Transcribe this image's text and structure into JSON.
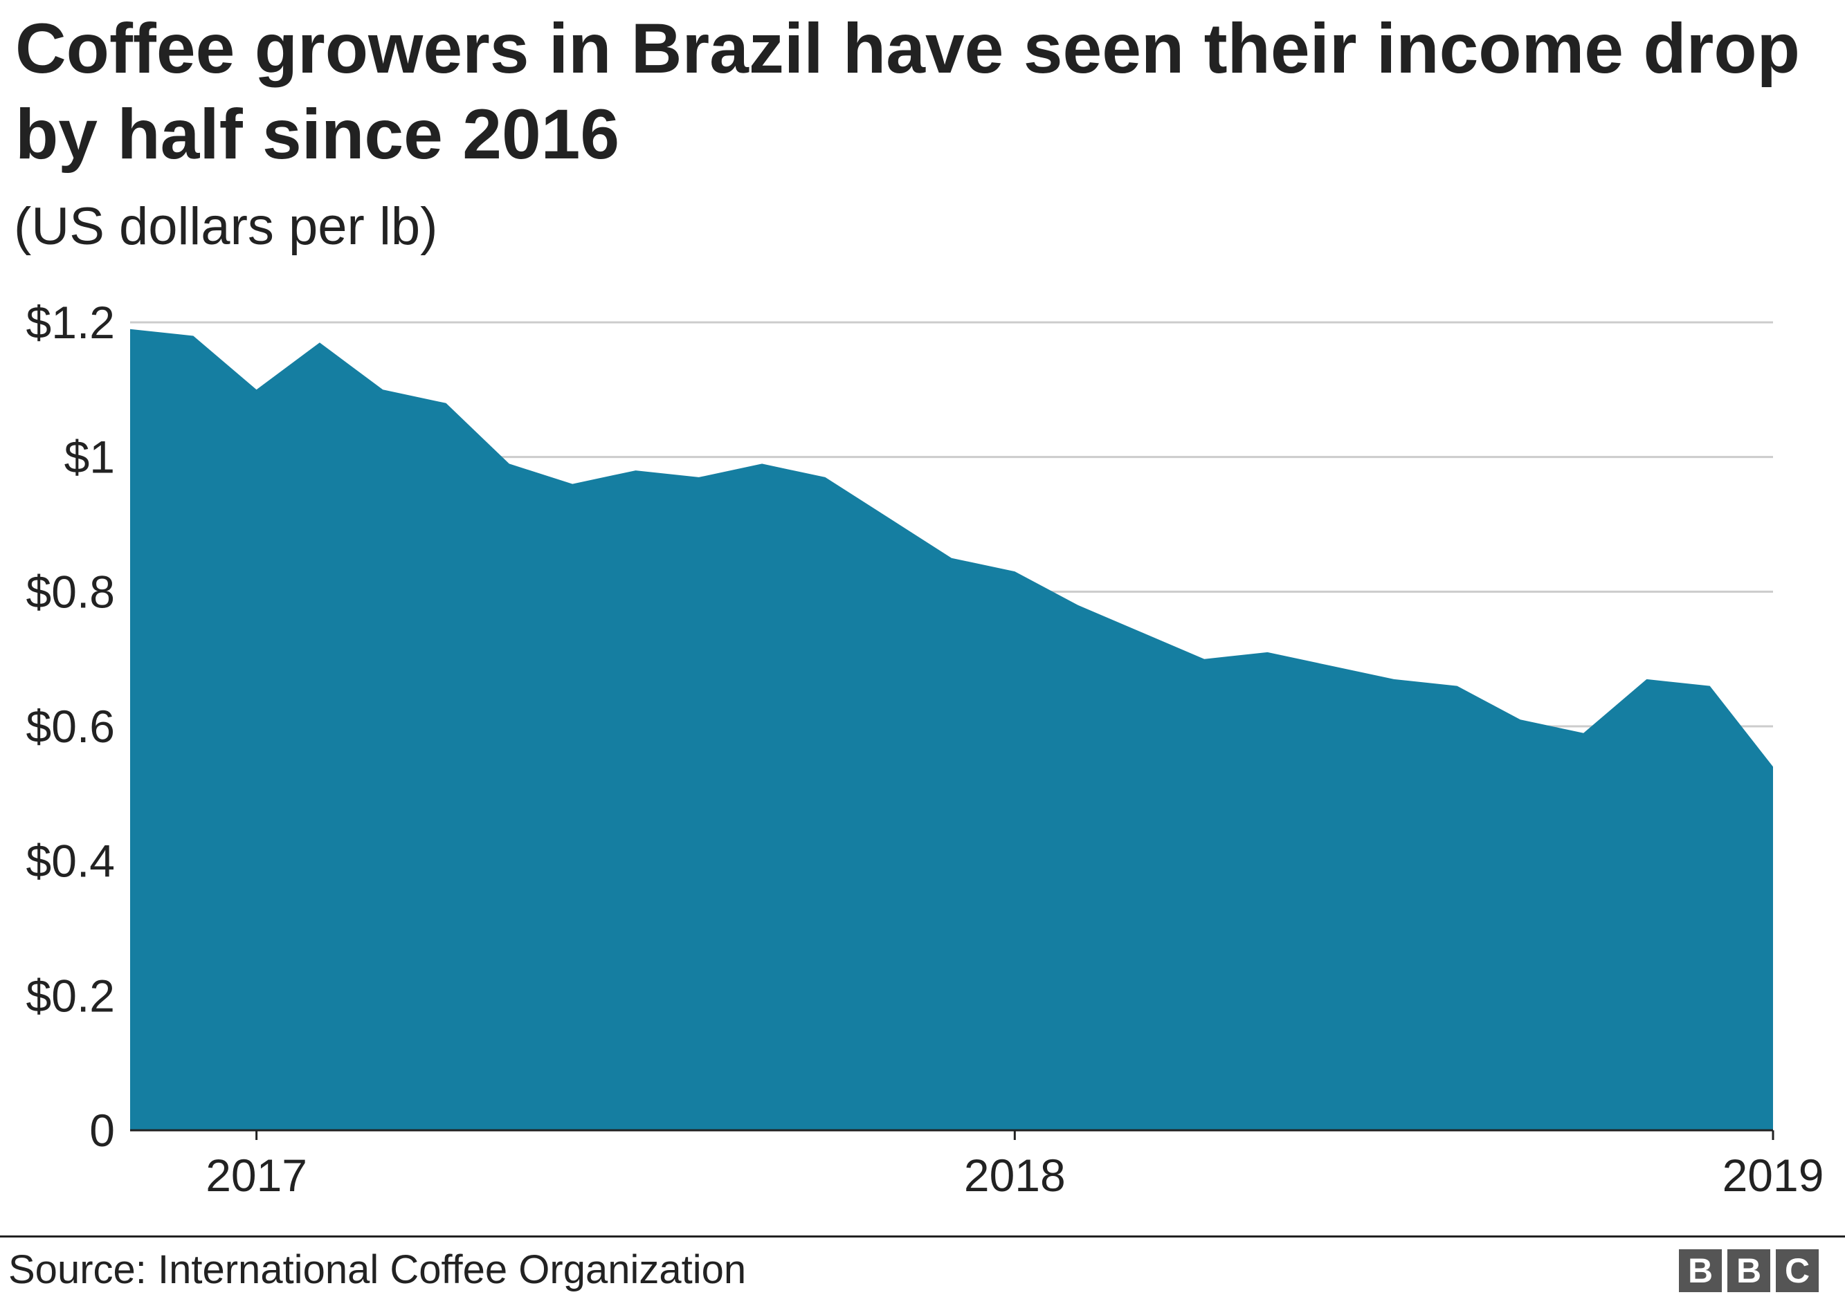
{
  "title": "Coffee growers in Brazil have seen their income drop by half since 2016",
  "subtitle": "(US dollars per lb)",
  "source": "Source: International Coffee Organization",
  "logo": {
    "letters": [
      "B",
      "B",
      "C"
    ],
    "color": "#555555"
  },
  "chart_data": {
    "type": "area",
    "x_start": "2016-11",
    "x_end": "2019-01",
    "x_ticks": [
      {
        "x": "2017-01",
        "label": "2017"
      },
      {
        "x": "2018-01",
        "label": "2018"
      },
      {
        "x": "2019-01",
        "label": "2019"
      }
    ],
    "y_ticks": [
      {
        "value": 0,
        "label": "0"
      },
      {
        "value": 0.2,
        "label": "$0.2"
      },
      {
        "value": 0.4,
        "label": "$0.4"
      },
      {
        "value": 0.6,
        "label": "$0.6"
      },
      {
        "value": 0.8,
        "label": "$0.8"
      },
      {
        "value": 1.0,
        "label": "$1"
      },
      {
        "value": 1.2,
        "label": "$1.2"
      }
    ],
    "ylim": [
      0,
      1.2
    ],
    "grid": true,
    "fill_color": "#157ea1",
    "series": [
      {
        "points": [
          {
            "x": "2016-11",
            "y": 1.19
          },
          {
            "x": "2016-12",
            "y": 1.18
          },
          {
            "x": "2017-01",
            "y": 1.1
          },
          {
            "x": "2017-02",
            "y": 1.17
          },
          {
            "x": "2017-03",
            "y": 1.1
          },
          {
            "x": "2017-04",
            "y": 1.08
          },
          {
            "x": "2017-05",
            "y": 0.99
          },
          {
            "x": "2017-06",
            "y": 0.96
          },
          {
            "x": "2017-07",
            "y": 0.98
          },
          {
            "x": "2017-08",
            "y": 0.97
          },
          {
            "x": "2017-09",
            "y": 0.99
          },
          {
            "x": "2017-10",
            "y": 0.97
          },
          {
            "x": "2017-11",
            "y": 0.91
          },
          {
            "x": "2017-12",
            "y": 0.85
          },
          {
            "x": "2018-01",
            "y": 0.83
          },
          {
            "x": "2018-02",
            "y": 0.78
          },
          {
            "x": "2018-03",
            "y": 0.74
          },
          {
            "x": "2018-04",
            "y": 0.7
          },
          {
            "x": "2018-05",
            "y": 0.71
          },
          {
            "x": "2018-06",
            "y": 0.69
          },
          {
            "x": "2018-07",
            "y": 0.67
          },
          {
            "x": "2018-08",
            "y": 0.66
          },
          {
            "x": "2018-09",
            "y": 0.61
          },
          {
            "x": "2018-10",
            "y": 0.59
          },
          {
            "x": "2018-11",
            "y": 0.67
          },
          {
            "x": "2018-12",
            "y": 0.66
          },
          {
            "x": "2019-01",
            "y": 0.54
          }
        ]
      }
    ]
  }
}
